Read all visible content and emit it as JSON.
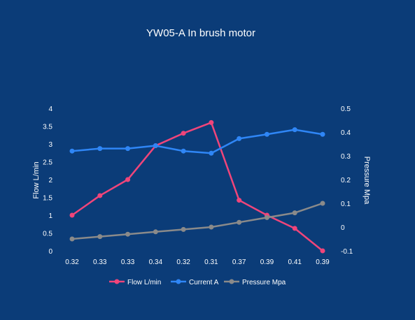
{
  "chart_data": {
    "type": "line",
    "title": "YW05-A In brush motor",
    "categories": [
      "0.32",
      "0.33",
      "0.33",
      "0.34",
      "0.32",
      "0.31",
      "0.37",
      "0.39",
      "0.41",
      "0.39"
    ],
    "ylabel": "Flow  L/min",
    "y2label": "Pressure Mpa",
    "ylim": [
      0,
      4
    ],
    "y2lim": [
      -0.1,
      0.5
    ],
    "yticks": [
      "0",
      "0.5",
      "1",
      "1.5",
      "2",
      "2.5",
      "3",
      "3.5",
      "4"
    ],
    "y2ticks": [
      "-0.1",
      "0",
      "0.1",
      "0.2",
      "0.3",
      "0.4",
      "0.5"
    ],
    "grid": false,
    "legend_position": "bottom",
    "series": [
      {
        "name": "Flow L/min",
        "axis": "left",
        "color": "#f0457a",
        "values": [
          1.0,
          1.55,
          2.0,
          2.95,
          3.3,
          3.6,
          1.42,
          1.0,
          0.63,
          0.0
        ]
      },
      {
        "name": "Current A",
        "axis": "left",
        "color": "#2f86f6",
        "values": [
          2.8,
          2.87,
          2.87,
          2.95,
          2.8,
          2.74,
          3.15,
          3.27,
          3.4,
          3.27
        ]
      },
      {
        "name": "Pressure Mpa",
        "axis": "right",
        "color": "#8a8a8a",
        "values": [
          -0.05,
          -0.04,
          -0.03,
          -0.02,
          -0.01,
          0.0,
          0.02,
          0.04,
          0.06,
          0.1
        ]
      }
    ]
  },
  "colors": {
    "background": "#0b3c78",
    "text": "#ffffff"
  }
}
